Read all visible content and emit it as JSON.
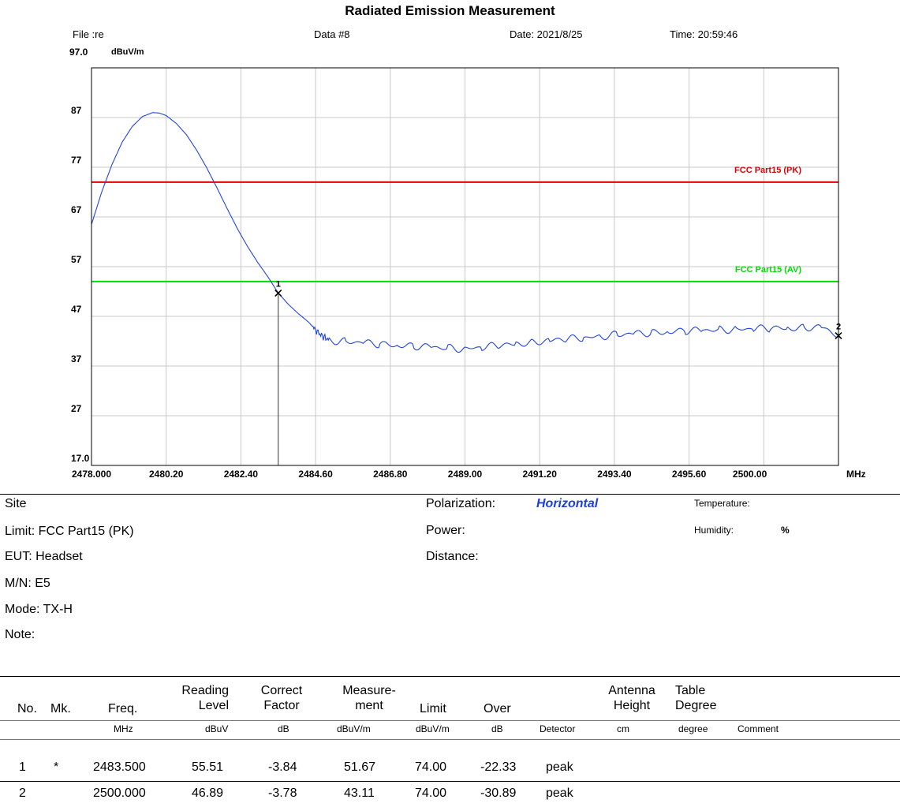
{
  "title": "Radiated Emission Measurement",
  "header": {
    "file": "File :re",
    "data": "Data #8",
    "date": "Date: 2021/8/25",
    "time": "Time: 20:59:46"
  },
  "chart_data": {
    "type": "line",
    "top_value": "97.0",
    "y_unit": "dBuV/m",
    "x_unit": "MHz",
    "xlim": [
      2478.0,
      2500.0
    ],
    "ylim": [
      17.0,
      97.0
    ],
    "grid": true,
    "y_ticks": [
      "87",
      "77",
      "67",
      "57",
      "47",
      "37",
      "27",
      "17.0"
    ],
    "x_ticks": [
      "2478.000",
      "2480.20",
      "2482.40",
      "2484.60",
      "2486.80",
      "2489.00",
      "2491.20",
      "2493.40",
      "2495.60",
      "2500.00"
    ],
    "limit_lines": [
      {
        "name": "FCC Part15 (PK)",
        "value": 74.0,
        "color": "#e00000"
      },
      {
        "name": "FCC Part15 (AV)",
        "value": 54.0,
        "color": "#00dd00"
      }
    ],
    "series": [
      {
        "color": "#2244dd",
        "x": [
          2478.0,
          2478.3,
          2478.6,
          2478.9,
          2479.2,
          2479.5,
          2479.8,
          2480.0,
          2480.2,
          2480.5,
          2480.8,
          2481.1,
          2481.4,
          2481.7,
          2482.0,
          2482.3,
          2482.6,
          2482.9,
          2483.2,
          2483.5,
          2483.8,
          2484.1,
          2484.4,
          2484.7,
          2485.0,
          2485.5,
          2486.0,
          2486.5,
          2487.0,
          2487.5,
          2488.0,
          2488.5,
          2489.0,
          2489.5,
          2490.0,
          2490.5,
          2491.0,
          2491.5,
          2492.0,
          2492.5,
          2493.0,
          2493.5,
          2494.0,
          2494.5,
          2495.0,
          2495.5,
          2496.0,
          2496.5,
          2497.0,
          2497.5,
          2498.0,
          2498.5,
          2499.0,
          2499.5,
          2500.0
        ],
        "y": [
          65.5,
          72.0,
          77.5,
          82.0,
          85.2,
          87.2,
          88.0,
          87.9,
          87.4,
          85.8,
          83.5,
          80.4,
          76.8,
          72.8,
          68.6,
          64.6,
          61.0,
          57.8,
          54.9,
          51.7,
          49.4,
          47.5,
          45.8,
          43.5,
          42.2,
          41.9,
          41.7,
          41.4,
          41.2,
          41.0,
          40.8,
          40.6,
          40.5,
          40.8,
          41.1,
          41.4,
          41.8,
          42.1,
          42.4,
          42.7,
          43.0,
          43.3,
          43.5,
          43.7,
          43.9,
          44.1,
          44.2,
          44.3,
          44.4,
          44.5,
          44.6,
          44.6,
          44.7,
          44.8,
          43.1
        ]
      }
    ],
    "markers": [
      {
        "label": "1",
        "x": 2483.5,
        "y": 51.67
      },
      {
        "label": "2",
        "x": 2500.0,
        "y": 43.11
      }
    ]
  },
  "info": {
    "site": "Site",
    "limit": "Limit: FCC Part15 (PK)",
    "eut": "EUT: Headset",
    "mn": "M/N:  E5",
    "mode": "Mode:  TX-H",
    "note": "Note:",
    "polarization_label": "Polarization:",
    "polarization_value": "Horizontal",
    "power": "Power:",
    "distance": "Distance:",
    "temperature": "Temperature:",
    "humidity": "Humidity:",
    "humidity_unit": "%"
  },
  "table": {
    "headers": {
      "no": "No.",
      "mk": "Mk.",
      "freq": "Freq.",
      "reading_1": "Reading",
      "reading_2": "Level",
      "correct_1": "Correct",
      "correct_2": "Factor",
      "measure_1": "Measure-",
      "measure_2": "ment",
      "limit": "Limit",
      "over": "Over",
      "antenna_1": "Antenna",
      "antenna_2": "Height",
      "table_1": "Table",
      "table_2": "Degree"
    },
    "units": {
      "freq": "MHz",
      "reading": "dBuV",
      "correct": "dB",
      "measure": "dBuV/m",
      "limit": "dBuV/m",
      "over": "dB",
      "detector": "Detector",
      "antenna": "cm",
      "table": "degree",
      "comment": "Comment"
    },
    "rows": [
      {
        "no": "1",
        "mk": "*",
        "freq": "2483.500",
        "reading": "55.51",
        "correct": "-3.84",
        "measure": "51.67",
        "limit": "74.00",
        "over": "-22.33",
        "detector": "peak"
      },
      {
        "no": "2",
        "mk": "",
        "freq": "2500.000",
        "reading": "46.89",
        "correct": "-3.78",
        "measure": "43.11",
        "limit": "74.00",
        "over": "-30.89",
        "detector": "peak"
      }
    ]
  }
}
